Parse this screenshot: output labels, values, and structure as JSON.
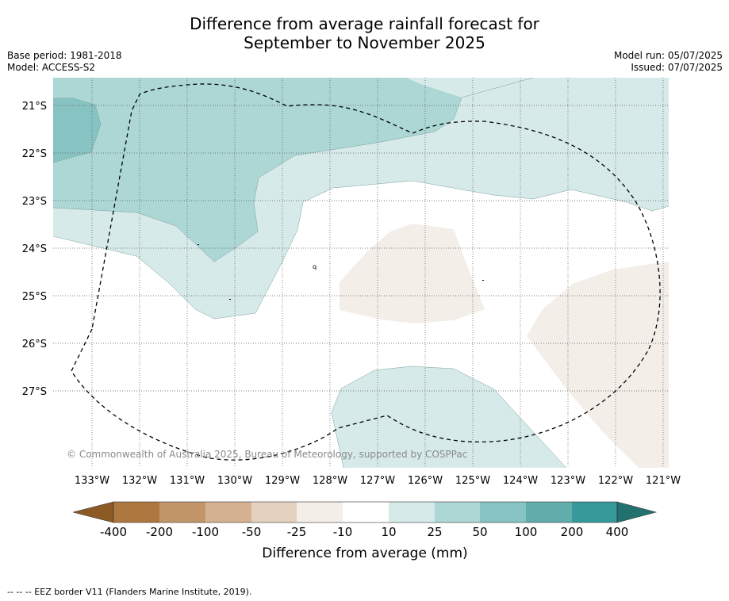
{
  "title": {
    "line1": "Difference from average rainfall forecast for",
    "line2": "September to November 2025"
  },
  "meta": {
    "base_period": "Base period: 1981-2018",
    "model": "Model: ACCESS-S2",
    "model_run": "Model run: 05/07/2025",
    "issued": "Issued: 07/07/2025"
  },
  "map": {
    "copyright": "© Commonwealth of Australia 2025, Bureau of Meteorology, supported by COSPPac",
    "lat_labels": [
      "21°S",
      "22°S",
      "23°S",
      "24°S",
      "25°S",
      "26°S",
      "27°S"
    ],
    "lon_labels": [
      "133°W",
      "132°W",
      "131°W",
      "130°W",
      "129°W",
      "128°W",
      "127°W",
      "126°W",
      "125°W",
      "124°W",
      "123°W",
      "122°W",
      "121°W"
    ],
    "stray_label": "q",
    "colors": {
      "light_teal": "#d6eae9",
      "mid_teal": "#acd7d5",
      "dark_teal": "#87c3c2",
      "light_brown": "#f4eee9"
    }
  },
  "colorbar": {
    "bins": [
      {
        "range": "< -400",
        "color": "#8d5a26"
      },
      {
        "range": "-400 to -200",
        "color": "#ae773f"
      },
      {
        "range": "-200 to -100",
        "color": "#c29569"
      },
      {
        "range": "-100 to -50",
        "color": "#d4b292"
      },
      {
        "range": "-50 to -25",
        "color": "#e4d1c0"
      },
      {
        "range": "-25 to -10",
        "color": "#f4eee9"
      },
      {
        "range": "-10 to 10",
        "color": "#ffffff"
      },
      {
        "range": "10 to 25",
        "color": "#d6eae9"
      },
      {
        "range": "25 to 50",
        "color": "#acd7d5"
      },
      {
        "range": "50 to 100",
        "color": "#87c3c2"
      },
      {
        "range": "100 to 200",
        "color": "#61adac"
      },
      {
        "range": "200 to 400",
        "color": "#36999a"
      },
      {
        "range": "> 400",
        "color": "#22716f"
      }
    ],
    "tick_labels": [
      "-400",
      "-200",
      "-100",
      "-50",
      "-25",
      "-10",
      "10",
      "25",
      "50",
      "100",
      "200",
      "400"
    ],
    "label": "Difference from average (mm)"
  },
  "footer": "--  --  -- EEZ border V11 (Flanders Marine Institute, 2019)."
}
